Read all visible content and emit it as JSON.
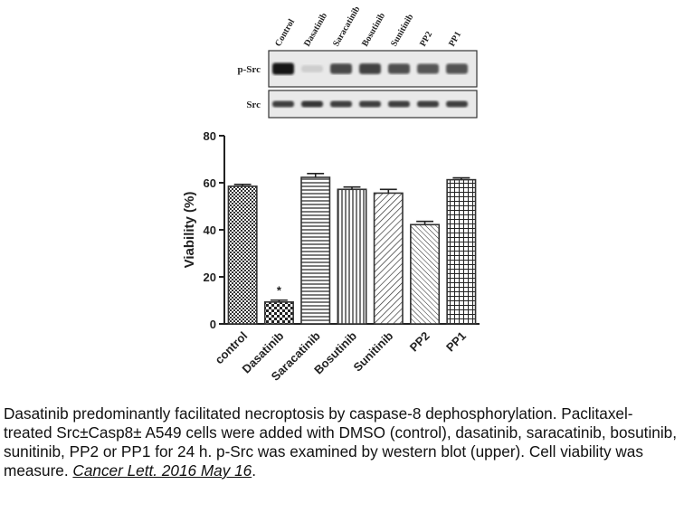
{
  "blot": {
    "lanes": [
      "Control",
      "Dasatinib",
      "Saracatinib",
      "Bosutinib",
      "Sunitinib",
      "PP2",
      "PP1"
    ],
    "rows": [
      {
        "label": "p-Src",
        "intensity": [
          1.0,
          0.12,
          0.75,
          0.78,
          0.72,
          0.68,
          0.7
        ]
      },
      {
        "label": "Src",
        "intensity": [
          0.8,
          0.85,
          0.8,
          0.8,
          0.8,
          0.8,
          0.8
        ]
      }
    ]
  },
  "chart_data": {
    "type": "bar",
    "categories": [
      "control",
      "Dasatinib",
      "Saracatinib",
      "Bosutinib",
      "Sunitinib",
      "PP2",
      "PP1"
    ],
    "values": [
      58.5,
      9.3,
      62.3,
      57.2,
      55.6,
      42.2,
      61.3
    ],
    "errors": [
      0.8,
      0.8,
      1.6,
      1.0,
      1.6,
      1.4,
      0.8
    ],
    "ylabel": "Viability (%)",
    "ylim": [
      0,
      80
    ],
    "yticks": [
      0,
      20,
      40,
      60,
      80
    ],
    "annotations": [
      {
        "category": "Dasatinib",
        "text": "*"
      }
    ],
    "bar_color": "#333333",
    "grid": false
  },
  "caption": {
    "text": "Dasatinib predominantly facilitated necroptosis by caspase-8 dephosphorylation. Paclitaxel-treated Src±Casp8± A549 cells were added with DMSO (control), dasatinib, saracatinib, bosutinib, sunitinib, PP2 or PP1 for 24 h. p-Src was examined by western blot (upper). Cell viability was measure. ",
    "reference": "Cancer Lett. 2016 May 16",
    "end": "."
  }
}
